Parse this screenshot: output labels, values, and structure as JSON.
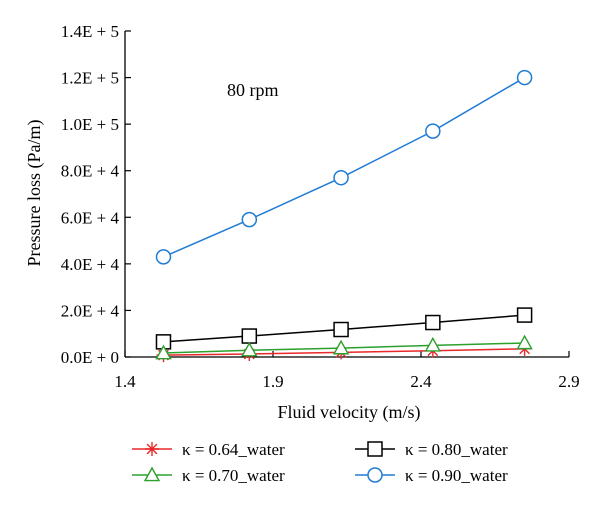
{
  "chart_data": {
    "type": "line",
    "xlabel": "Fluid velocity (m/s)",
    "ylabel": "Pressure loss (Pa/m)",
    "xlim": [
      1.4,
      2.9
    ],
    "ylim": [
      0,
      140000
    ],
    "x_ticks": [
      1.4,
      1.9,
      2.4,
      2.9
    ],
    "x_tick_labels": [
      "1.4",
      "1.9",
      "2.4",
      "2.9"
    ],
    "y_ticks": [
      0,
      20000,
      40000,
      60000,
      80000,
      100000,
      120000,
      140000
    ],
    "y_tick_labels": [
      "0.0E + 0",
      "2.0E + 4",
      "4.0E + 4",
      "6.0E + 4",
      "8.0E + 4",
      "1.0E + 5",
      "1.2E + 5",
      "1.4E + 5"
    ],
    "annotation": "80 rpm",
    "grid": false,
    "legend_position": "bottom",
    "series": [
      {
        "name": "κ = 0.64_water",
        "color": "#e8282b",
        "marker": "asterisk",
        "x": [
          1.53,
          1.82,
          2.13,
          2.44,
          2.75
        ],
        "y": [
          800,
          1300,
          2000,
          2700,
          3500
        ]
      },
      {
        "name": "κ = 0.80_water",
        "color": "#000000",
        "marker": "square",
        "x": [
          1.53,
          1.82,
          2.13,
          2.44,
          2.75
        ],
        "y": [
          6500,
          9000,
          11800,
          14800,
          18000
        ]
      },
      {
        "name": "κ = 0.70_water",
        "color": "#2ca02c",
        "marker": "triangle",
        "x": [
          1.53,
          1.82,
          2.13,
          2.44,
          2.75
        ],
        "y": [
          1700,
          2900,
          3800,
          5000,
          6000
        ]
      },
      {
        "name": "κ = 0.90_water",
        "color": "#1f7bd3",
        "marker": "circle",
        "x": [
          1.53,
          1.82,
          2.13,
          2.44,
          2.75
        ],
        "y": [
          43000,
          59000,
          77000,
          97000,
          120000
        ]
      }
    ]
  }
}
